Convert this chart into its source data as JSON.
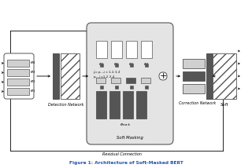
{
  "white": "#ffffff",
  "light_gray": "#d0d0d0",
  "med_gray": "#aaaaaa",
  "dark_gray": "#555555",
  "darker_gray": "#444444",
  "panel_bg": "#e4e4e4",
  "line_color": "#333333",
  "title_color": "#2255aa",
  "detection_label": "Detection Network",
  "correction_label": "Correction Network",
  "soft_masking_label": "Soft Masking",
  "residual_label": "Residual Connection",
  "soft_label": "Soft",
  "figure_caption": "Figure 1: Architecture of Soft-Masked BERT",
  "labels_e": [
    "$e_1$",
    "$e_2$",
    "$e_3$",
    "$e_4$"
  ]
}
